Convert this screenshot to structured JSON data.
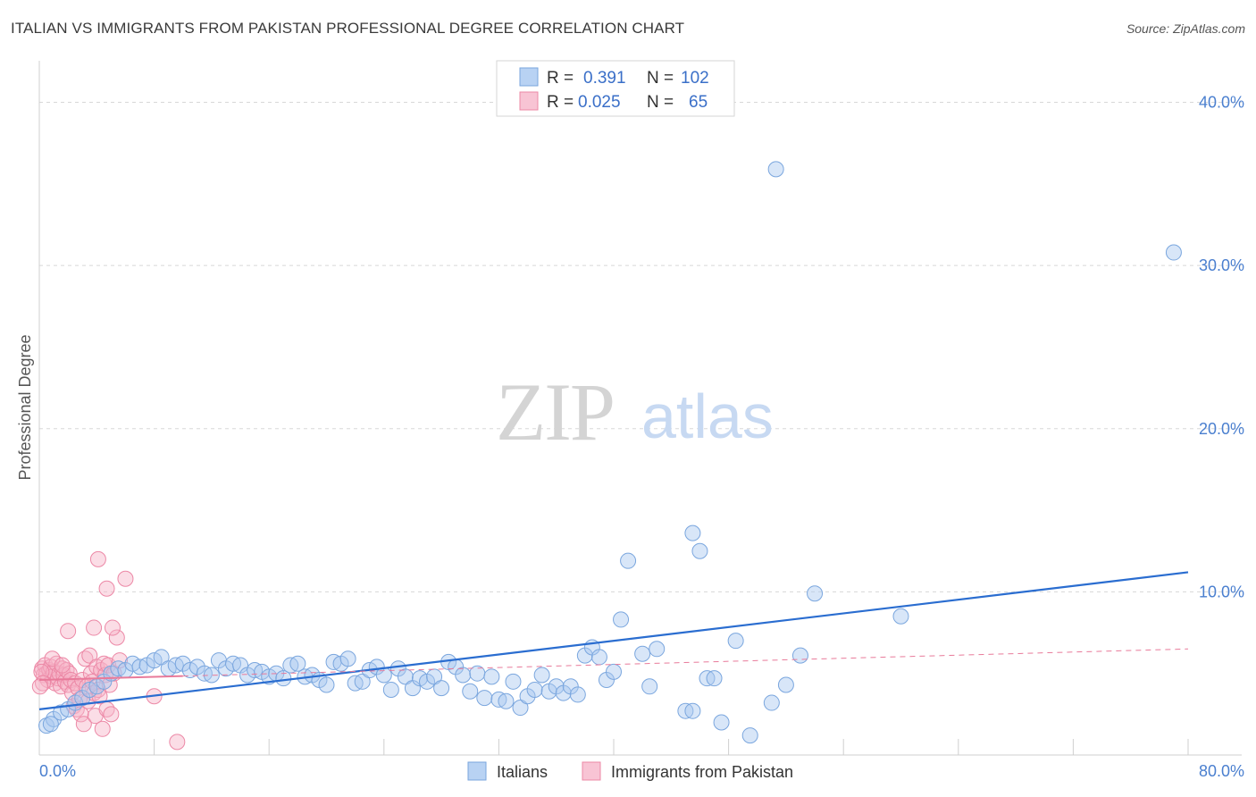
{
  "title": "ITALIAN VS IMMIGRANTS FROM PAKISTAN PROFESSIONAL DEGREE CORRELATION CHART",
  "source": "Source: ZipAtlas.com",
  "watermark": {
    "zip": "ZIP",
    "atlas": "atlas"
  },
  "legend_top": {
    "rows": [
      {
        "r_label": "R =",
        "r_value": "0.391",
        "n_label": "N =",
        "n_value": "102"
      },
      {
        "r_label": "R =",
        "r_value": "0.025",
        "n_label": "N =",
        "n_value": "65"
      }
    ]
  },
  "legend_bottom": {
    "series1": "Italians",
    "series2": "Immigrants from Pakistan"
  },
  "colors": {
    "blue_fill": "#a8c8f0",
    "blue_stroke": "#7aa6de",
    "blue_line": "#2a6dd0",
    "pink_fill": "#f6b3c8",
    "pink_stroke": "#ec88a6",
    "pink_line": "#e87a9a",
    "grid": "#d8d8d8",
    "tick_text": "#4a7fcf"
  },
  "chart_data": {
    "type": "scatter",
    "title": "ITALIAN VS IMMIGRANTS FROM PAKISTAN PROFESSIONAL DEGREE CORRELATION CHART",
    "xlabel": "",
    "ylabel": "Professional Degree",
    "xlim": [
      0,
      80
    ],
    "ylim": [
      0,
      42
    ],
    "x_tick_labels": [
      "0.0%",
      "80.0%"
    ],
    "y_ticks": [
      10,
      20,
      30,
      40
    ],
    "y_tick_labels": [
      "10.0%",
      "20.0%",
      "30.0%",
      "40.0%"
    ],
    "grid": true,
    "legend_position": "top-center",
    "series": [
      {
        "name": "Italians",
        "R": 0.391,
        "N": 102,
        "trend": {
          "x": [
            0,
            80
          ],
          "y": [
            2.8,
            11.2
          ]
        },
        "points": [
          [
            0.5,
            1.8
          ],
          [
            1,
            2.2
          ],
          [
            1.5,
            2.6
          ],
          [
            2,
            2.8
          ],
          [
            2.5,
            3.2
          ],
          [
            3,
            3.5
          ],
          [
            3.5,
            4.0
          ],
          [
            4,
            4.2
          ],
          [
            4.5,
            4.5
          ],
          [
            5,
            5.0
          ],
          [
            5.5,
            5.3
          ],
          [
            6,
            5.2
          ],
          [
            6.5,
            5.6
          ],
          [
            7,
            5.4
          ],
          [
            7.5,
            5.5
          ],
          [
            8,
            5.8
          ],
          [
            8.5,
            6.0
          ],
          [
            9,
            5.3
          ],
          [
            9.5,
            5.5
          ],
          [
            10,
            5.6
          ],
          [
            10.5,
            5.2
          ],
          [
            11,
            5.4
          ],
          [
            11.5,
            5.0
          ],
          [
            12,
            4.9
          ],
          [
            12.5,
            5.8
          ],
          [
            13,
            5.3
          ],
          [
            13.5,
            5.6
          ],
          [
            14,
            5.5
          ],
          [
            14.5,
            4.9
          ],
          [
            15,
            5.2
          ],
          [
            15.5,
            5.1
          ],
          [
            16,
            4.8
          ],
          [
            16.5,
            5.0
          ],
          [
            17,
            4.7
          ],
          [
            17.5,
            5.5
          ],
          [
            18,
            5.6
          ],
          [
            18.5,
            4.8
          ],
          [
            19,
            4.9
          ],
          [
            19.5,
            4.6
          ],
          [
            20,
            4.3
          ],
          [
            20.5,
            5.7
          ],
          [
            21,
            5.6
          ],
          [
            21.5,
            5.9
          ],
          [
            22,
            4.4
          ],
          [
            22.5,
            4.5
          ],
          [
            23,
            5.2
          ],
          [
            23.5,
            5.4
          ],
          [
            24,
            4.9
          ],
          [
            24.5,
            4.0
          ],
          [
            25,
            5.3
          ],
          [
            25.5,
            4.8
          ],
          [
            26,
            4.1
          ],
          [
            26.5,
            4.7
          ],
          [
            27,
            4.5
          ],
          [
            27.5,
            4.8
          ],
          [
            28,
            4.1
          ],
          [
            28.5,
            5.7
          ],
          [
            29,
            5.4
          ],
          [
            29.5,
            4.9
          ],
          [
            30,
            3.9
          ],
          [
            30.5,
            5.0
          ],
          [
            31,
            3.5
          ],
          [
            31.5,
            4.8
          ],
          [
            32,
            3.4
          ],
          [
            32.5,
            3.3
          ],
          [
            33,
            4.5
          ],
          [
            33.5,
            2.9
          ],
          [
            34,
            3.6
          ],
          [
            34.5,
            4.0
          ],
          [
            35,
            4.9
          ],
          [
            35.5,
            3.9
          ],
          [
            36,
            4.2
          ],
          [
            36.5,
            3.8
          ],
          [
            37,
            4.2
          ],
          [
            37.5,
            3.7
          ],
          [
            38,
            6.1
          ],
          [
            38.5,
            6.6
          ],
          [
            39,
            6.0
          ],
          [
            39.5,
            4.6
          ],
          [
            40,
            5.1
          ],
          [
            40.5,
            8.3
          ],
          [
            41,
            11.9
          ],
          [
            42,
            6.2
          ],
          [
            42.5,
            4.2
          ],
          [
            43,
            6.5
          ],
          [
            45,
            2.7
          ],
          [
            45.5,
            2.7
          ],
          [
            45.5,
            13.6
          ],
          [
            46,
            12.5
          ],
          [
            46.5,
            4.7
          ],
          [
            47,
            4.7
          ],
          [
            47.5,
            2.0
          ],
          [
            48.5,
            7.0
          ],
          [
            49.5,
            1.2
          ],
          [
            51,
            3.2
          ],
          [
            51.3,
            35.9
          ],
          [
            52,
            4.3
          ],
          [
            53,
            6.1
          ],
          [
            54,
            9.9
          ],
          [
            60,
            8.5
          ],
          [
            79,
            30.8
          ],
          [
            0.8,
            1.9
          ]
        ]
      },
      {
        "name": "Immigrants from Pakistan",
        "R": 0.025,
        "N": 65,
        "trend": {
          "x": [
            0,
            80
          ],
          "y": [
            4.6,
            6.5
          ]
        },
        "points": [
          [
            0.2,
            5.3
          ],
          [
            0.3,
            4.9
          ],
          [
            0.4,
            5.5
          ],
          [
            0.5,
            5.0
          ],
          [
            0.6,
            4.6
          ],
          [
            0.7,
            5.2
          ],
          [
            0.8,
            5.4
          ],
          [
            0.9,
            4.8
          ],
          [
            1.0,
            5.1
          ],
          [
            1.1,
            4.4
          ],
          [
            1.2,
            5.6
          ],
          [
            1.3,
            4.7
          ],
          [
            1.4,
            5.0
          ],
          [
            1.5,
            4.2
          ],
          [
            1.6,
            5.3
          ],
          [
            1.7,
            4.9
          ],
          [
            1.8,
            4.5
          ],
          [
            1.9,
            5.2
          ],
          [
            2.0,
            4.3
          ],
          [
            2.1,
            5.0
          ],
          [
            2.2,
            4.6
          ],
          [
            2.3,
            3.8
          ],
          [
            2.4,
            3.0
          ],
          [
            2.5,
            4.4
          ],
          [
            2.6,
            2.8
          ],
          [
            2.7,
            4.1
          ],
          [
            2.8,
            3.4
          ],
          [
            2.9,
            2.5
          ],
          [
            3.0,
            4.6
          ],
          [
            3.1,
            1.9
          ],
          [
            3.2,
            5.9
          ],
          [
            3.3,
            4.2
          ],
          [
            3.4,
            3.3
          ],
          [
            3.5,
            6.1
          ],
          [
            3.6,
            5.0
          ],
          [
            3.7,
            4.5
          ],
          [
            3.8,
            3.8
          ],
          [
            3.9,
            2.4
          ],
          [
            4.0,
            5.4
          ],
          [
            4.1,
            4.0
          ],
          [
            4.2,
            3.6
          ],
          [
            4.3,
            5.2
          ],
          [
            4.4,
            1.6
          ],
          [
            4.5,
            5.6
          ],
          [
            4.6,
            4.9
          ],
          [
            4.7,
            2.8
          ],
          [
            4.8,
            5.5
          ],
          [
            4.9,
            4.3
          ],
          [
            5.0,
            2.5
          ],
          [
            5.2,
            5.0
          ],
          [
            5.4,
            7.2
          ],
          [
            5.6,
            5.8
          ],
          [
            0.9,
            5.9
          ],
          [
            1.6,
            5.5
          ],
          [
            2.0,
            7.6
          ],
          [
            3.8,
            7.8
          ],
          [
            4.1,
            12.0
          ],
          [
            4.7,
            10.2
          ],
          [
            5.1,
            7.8
          ],
          [
            6.0,
            10.8
          ],
          [
            8.0,
            3.6
          ],
          [
            9.6,
            0.8
          ],
          [
            0.15,
            5.1
          ],
          [
            0.25,
            4.4
          ],
          [
            0.05,
            4.2
          ]
        ]
      }
    ]
  }
}
